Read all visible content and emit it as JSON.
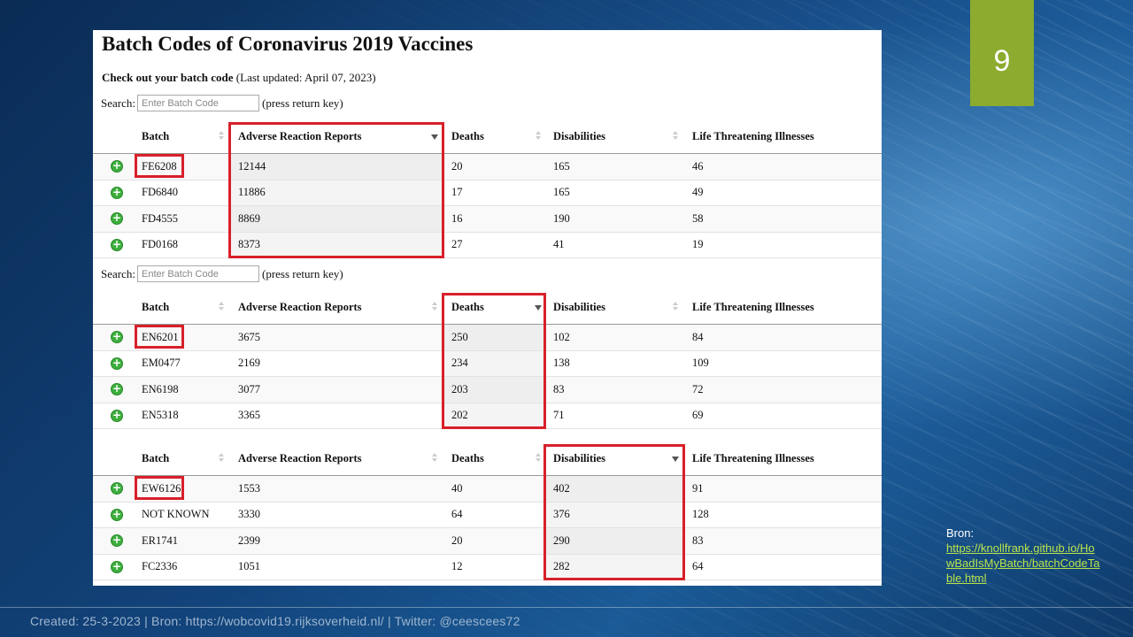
{
  "slide": {
    "number": "9"
  },
  "page": {
    "title": "Batch Codes of Coronavirus 2019 Vaccines",
    "subtitle_bold": "Check out your batch code",
    "subtitle_rest": "(Last updated: April 07, 2023)"
  },
  "search": {
    "label": "Search:",
    "placeholder": "Enter Batch Code",
    "hint": "(press return key)"
  },
  "columns": [
    "Batch",
    "Adverse Reaction Reports",
    "Deaths",
    "Disabilities",
    "Life Threatening Illnesses"
  ],
  "tables": [
    {
      "sorted_by": "Adverse Reaction Reports",
      "rows": [
        [
          "FE6208",
          "12144",
          "20",
          "165",
          "46"
        ],
        [
          "FD6840",
          "11886",
          "17",
          "165",
          "49"
        ],
        [
          "FD4555",
          "8869",
          "16",
          "190",
          "58"
        ],
        [
          "FD0168",
          "8373",
          "27",
          "41",
          "19"
        ]
      ]
    },
    {
      "sorted_by": "Deaths",
      "rows": [
        [
          "EN6201",
          "3675",
          "250",
          "102",
          "84"
        ],
        [
          "EM0477",
          "2169",
          "234",
          "138",
          "109"
        ],
        [
          "EN6198",
          "3077",
          "203",
          "83",
          "72"
        ],
        [
          "EN5318",
          "3365",
          "202",
          "71",
          "69"
        ]
      ]
    },
    {
      "sorted_by": "Disabilities",
      "rows": [
        [
          "EW6126",
          "1553",
          "40",
          "402",
          "91"
        ],
        [
          "NOT KNOWN",
          "3330",
          "64",
          "376",
          "128"
        ],
        [
          "ER1741",
          "2399",
          "20",
          "290",
          "83"
        ],
        [
          "FC2336",
          "1051",
          "12",
          "282",
          "64"
        ]
      ]
    }
  ],
  "source": {
    "label": "Bron:",
    "link": "https://knollfrank.github.io/HowBadIsMyBatch/batchCodeTable.html"
  },
  "footer": "Created: 25-3-2023 | Bron: https://wobcovid19.rijksoverheid.nl/ |  Twitter: @ceescees72",
  "colors": {
    "accent_green": "#8cab2f",
    "highlight_red": "#d8202a",
    "link_green": "#b8e34a"
  }
}
